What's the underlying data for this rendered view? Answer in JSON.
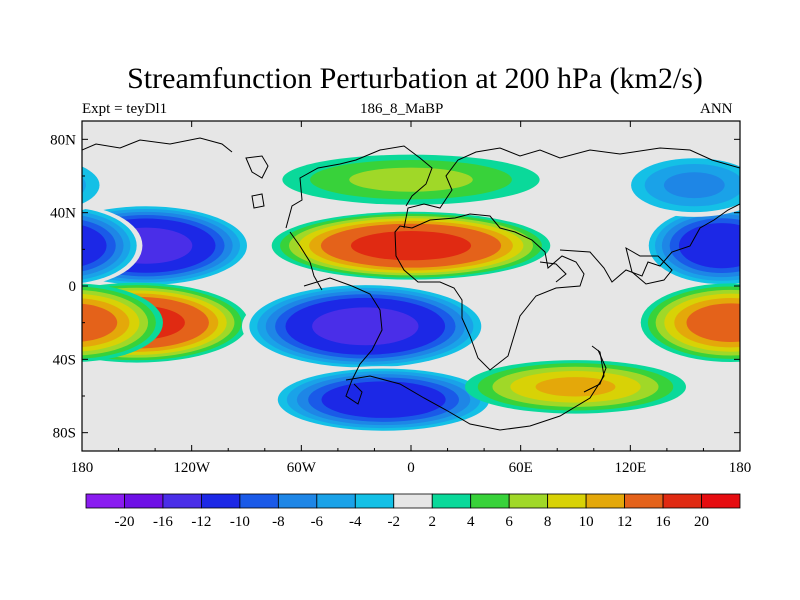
{
  "figure": {
    "title": "Streamfunction Perturbation at 200 hPa (km2/s)",
    "left_label": "Expt = teyDl1",
    "center_label": "186_8_MaBP",
    "right_label": "ANN"
  },
  "chart_data": {
    "type": "filled-contour-map",
    "title": "Streamfunction Perturbation at 200 hPa (km2/s)",
    "projection": "cylindrical equidistant",
    "lon_range": [
      -180,
      180
    ],
    "lat_range": [
      -90,
      90
    ],
    "x_ticks": [
      {
        "value": -180,
        "label": "180"
      },
      {
        "value": -120,
        "label": "120W"
      },
      {
        "value": -60,
        "label": "60W"
      },
      {
        "value": 0,
        "label": "0"
      },
      {
        "value": 60,
        "label": "60E"
      },
      {
        "value": 120,
        "label": "120E"
      },
      {
        "value": 180,
        "label": "180"
      }
    ],
    "y_ticks": [
      {
        "value": 80,
        "label": "80N"
      },
      {
        "value": 40,
        "label": "40N"
      },
      {
        "value": 0,
        "label": "0"
      },
      {
        "value": -40,
        "label": "40S"
      },
      {
        "value": -80,
        "label": "80S"
      }
    ],
    "contour_levels": [
      -20,
      -16,
      -12,
      -10,
      -8,
      -6,
      -4,
      -2,
      2,
      4,
      6,
      8,
      10,
      12,
      16,
      20
    ],
    "colorbar_labels": [
      "-20",
      "-16",
      "-12",
      "-10",
      "-8",
      "-6",
      "-4",
      "-2",
      "2",
      "4",
      "6",
      "8",
      "10",
      "12",
      "16",
      "20"
    ],
    "colors": [
      "#8a1cf0",
      "#6e10e6",
      "#4a2ee8",
      "#1c28e6",
      "#1a5ae8",
      "#1e86e6",
      "#1aa2e8",
      "#14c0e6",
      "#e6e6e6",
      "#0ad99a",
      "#38d23a",
      "#a0d828",
      "#d8d206",
      "#e4a80a",
      "#e4621a",
      "#e02a12",
      "#e60c10"
    ],
    "features": [
      {
        "name": "NH high centre over Africa / Asia",
        "lon": 0,
        "lat": 22,
        "value": 18
      },
      {
        "name": "NH low centre east Pacific",
        "lon": -145,
        "lat": 22,
        "value": -18
      },
      {
        "name": "NH low west Pacific",
        "lon": 170,
        "lat": 22,
        "value": -15
      },
      {
        "name": "SH high centre east Pacific",
        "lon": -150,
        "lat": -20,
        "value": 18
      },
      {
        "name": "SH high west Pacific",
        "lon": 175,
        "lat": -20,
        "value": 14
      },
      {
        "name": "SH low centre South America / Atlantic",
        "lon": -25,
        "lat": -22,
        "value": -18
      },
      {
        "name": "SH low centre South Atlantic",
        "lon": -15,
        "lat": -62,
        "value": -15
      },
      {
        "name": "high-latitude SH high Indian Ocean",
        "lon": 90,
        "lat": -55,
        "value": 10
      },
      {
        "name": "NH mid-latitude ridge",
        "lon": 0,
        "lat": 58,
        "value": 6
      },
      {
        "name": "NH mid-latitude trough Pacific",
        "lon": 155,
        "lat": 55,
        "value": -8
      }
    ]
  }
}
